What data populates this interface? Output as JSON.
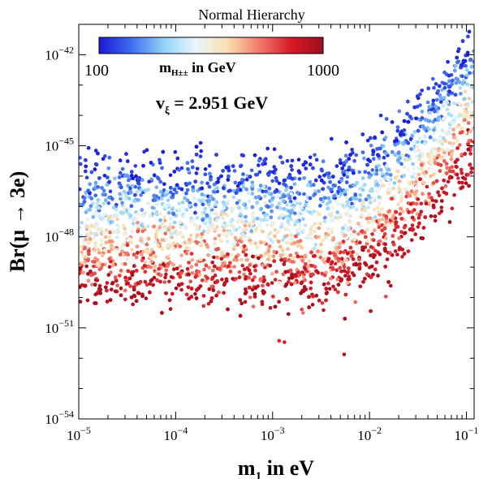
{
  "chart_data": {
    "type": "scatter",
    "title": "Normal Hierarchy",
    "xlabel": "m1 in eV",
    "xlabel_main": "m",
    "xlabel_sub": "1",
    "xlabel_rest": " in eV",
    "ylabel": "Br(μ → 3e)",
    "x_scale": "log",
    "y_scale": "log",
    "xlim": [
      1e-05,
      0.12
    ],
    "ylim": [
      1e-54,
      1e-41
    ],
    "x_ticks": [
      {
        "base": "10",
        "exp": "−5",
        "value": 1e-05
      },
      {
        "base": "10",
        "exp": "−4",
        "value": 0.0001
      },
      {
        "base": "10",
        "exp": "−3",
        "value": 0.001
      },
      {
        "base": "10",
        "exp": "−2",
        "value": 0.01
      },
      {
        "base": "10",
        "exp": "−1",
        "value": 0.1
      }
    ],
    "y_ticks": [
      {
        "base": "10",
        "exp": "−42",
        "value": 1e-42
      },
      {
        "base": "10",
        "exp": "−45",
        "value": 1e-45
      },
      {
        "base": "10",
        "exp": "−48",
        "value": 1e-48
      },
      {
        "base": "10",
        "exp": "−51",
        "value": 1e-51
      },
      {
        "base": "10",
        "exp": "−54",
        "value": 1e-54
      }
    ],
    "annotation": {
      "main": "v",
      "sub": "ξ",
      "rest": " = 2.951 GeV"
    },
    "colorbar": {
      "min_label": "100",
      "max_label": "1000",
      "label_main": "m",
      "label_sub": "H±±",
      "label_rest": " in GeV",
      "range": [
        100,
        1000
      ],
      "colors": [
        "#1a1ad6",
        "#3f6cf0",
        "#8fd0f8",
        "#e6f6fb",
        "#fbe0b0",
        "#f07a6a",
        "#d81a26",
        "#a00d1c"
      ]
    },
    "color_variable": "mH±± in GeV",
    "series": [
      {
        "color_by": "mH±±",
        "description_levels": [
          {
            "mH": 100,
            "log10_br_plateau": -45.8
          },
          {
            "mH": 1000,
            "log10_br_plateau": -49.8
          }
        ],
        "knee_m1": 0.003,
        "log10_br_at_m1_0.12": -41.5
      }
    ]
  }
}
